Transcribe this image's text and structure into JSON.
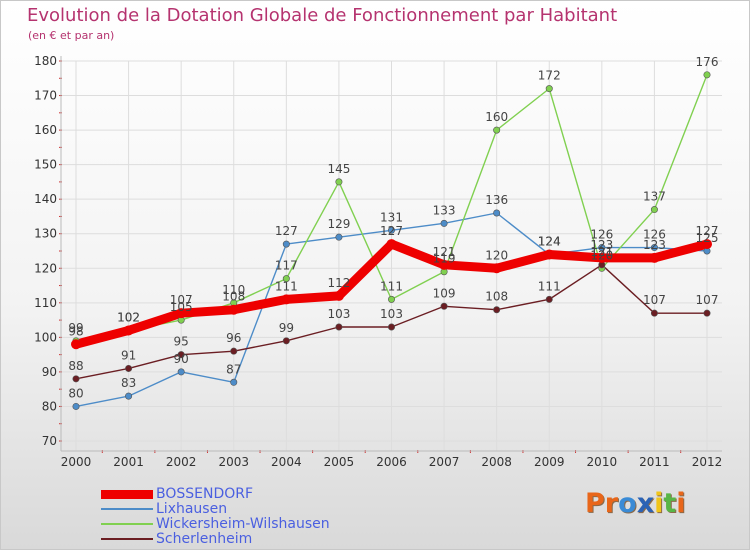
{
  "title": "Evolution de la Dotation Globale de Fonctionnement par Habitant",
  "subtitle": "(en € et par an)",
  "logo": {
    "text": "Proxiti",
    "letters": [
      "P",
      "r",
      "o",
      "x",
      "i",
      "t",
      "i"
    ],
    "colors": [
      "#e8661a",
      "#e8661a",
      "#3a8bd6",
      "#2c63b5",
      "#f0c419",
      "#58b546",
      "#e8661a"
    ]
  },
  "chart_data": {
    "type": "line",
    "title": "Evolution de la Dotation Globale de Fonctionnement par Habitant",
    "subtitle": "(en € et par an)",
    "xlabel": "",
    "ylabel": "",
    "x": [
      "2000",
      "2001",
      "2002",
      "2003",
      "2004",
      "2005",
      "2006",
      "2007",
      "2008",
      "2009",
      "2010",
      "2011",
      "2012"
    ],
    "ylim": [
      70,
      180
    ],
    "yticks": [
      70,
      80,
      90,
      100,
      110,
      120,
      130,
      140,
      150,
      160,
      170,
      180
    ],
    "grid": true,
    "legend_position": "bottom-left",
    "series": [
      {
        "name": "BOSSENDORF",
        "color": "#ee0000",
        "emphasis": "thick",
        "values": [
          98,
          102,
          107,
          108,
          111,
          112,
          127,
          121,
          120,
          124,
          123,
          123,
          127
        ]
      },
      {
        "name": "Lixhausen",
        "color": "#4d8cc8",
        "emphasis": "normal",
        "values": [
          80,
          83,
          90,
          87,
          127,
          129,
          131,
          133,
          136,
          124,
          126,
          126,
          125
        ]
      },
      {
        "name": "Wickersheim-Wilshausen",
        "color": "#80d050",
        "emphasis": "normal",
        "values": [
          99,
          102,
          105,
          110,
          117,
          145,
          111,
          119,
          160,
          172,
          120,
          137,
          176
        ]
      },
      {
        "name": "Scherlenheim",
        "color": "#6b1e23",
        "emphasis": "normal",
        "values": [
          88,
          91,
          95,
          96,
          99,
          103,
          103,
          109,
          108,
          111,
          121,
          107,
          107
        ]
      }
    ]
  }
}
